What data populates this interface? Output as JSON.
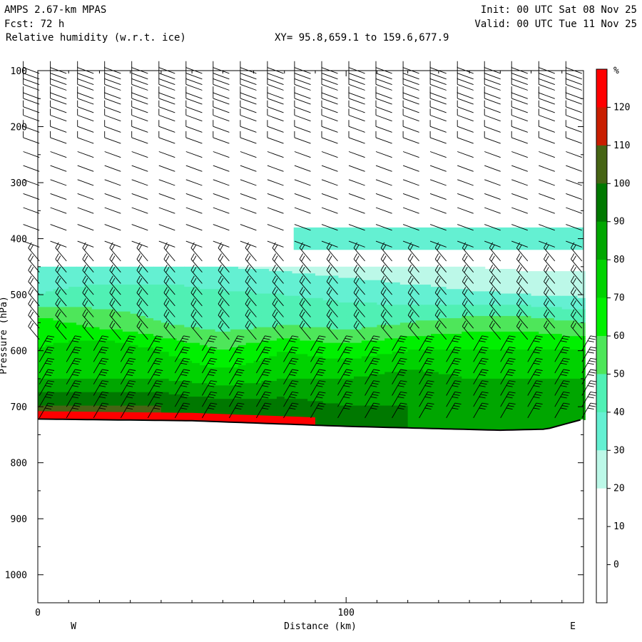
{
  "header": {
    "model": "AMPS 2.67-km MPAS",
    "fcst": "Fcst:   72 h",
    "field": "Relative humidity (w.r.t. ice)",
    "xy": "XY=  95.8,659.1 to 159.6,677.9",
    "init": "Init: 00 UTC Sat 08 Nov 25",
    "valid": "Valid: 00 UTC Tue 11 Nov 25"
  },
  "chart_data": {
    "type": "heatmap",
    "title": "Relative humidity (w.r.t. ice)",
    "xlabel": "Distance (km)",
    "ylabel": "Pressure (hPa)",
    "xlim": [
      0,
      177
    ],
    "ylim": [
      1050,
      100
    ],
    "x_ticks": [
      0,
      100
    ],
    "x_minor_step": 10,
    "y_ticks": [
      100,
      200,
      300,
      400,
      500,
      600,
      700,
      800,
      900,
      1000
    ],
    "side_labels": {
      "left": "W",
      "right": "E"
    },
    "colorbar": {
      "unit": "%",
      "tick_labels": [
        120,
        110,
        100,
        90,
        80,
        70,
        60,
        50,
        40,
        30,
        20,
        10,
        0
      ],
      "bins": [
        {
          "range": [
            120,
            130
          ],
          "color": "#ff0000"
        },
        {
          "range": [
            110,
            120
          ],
          "color": "#c81e00"
        },
        {
          "range": [
            100,
            110
          ],
          "color": "#466414"
        },
        {
          "range": [
            90,
            100
          ],
          "color": "#007800"
        },
        {
          "range": [
            80,
            90
          ],
          "color": "#00a600"
        },
        {
          "range": [
            70,
            80
          ],
          "color": "#00d200"
        },
        {
          "range": [
            60,
            70
          ],
          "color": "#00f000"
        },
        {
          "range": [
            50,
            60
          ],
          "color": "#4ee65a"
        },
        {
          "range": [
            40,
            50
          ],
          "color": "#50f0b4"
        },
        {
          "range": [
            30,
            40
          ],
          "color": "#64f0d2"
        },
        {
          "range": [
            20,
            30
          ],
          "color": "#bcf8e8"
        },
        {
          "range": [
            10,
            20
          ],
          "color": "#ffffff"
        },
        {
          "range": [
            0,
            10
          ],
          "color": "#ffffff"
        },
        {
          "range": [
            -10,
            0
          ],
          "color": "#ffffff"
        }
      ]
    },
    "terrain_surface": {
      "x": [
        0,
        50,
        100,
        150,
        165,
        177
      ],
      "p": [
        722,
        725,
        735,
        742,
        740,
        722
      ]
    },
    "rh_field": {
      "x": [
        0,
        20,
        40,
        60,
        80,
        100,
        120,
        140,
        160,
        177
      ],
      "p": [
        450,
        500,
        550,
        600,
        650,
        700
      ],
      "values": [
        [
          32,
          32,
          32,
          30,
          28,
          25,
          22,
          20,
          18,
          18
        ],
        [
          40,
          45,
          45,
          42,
          40,
          38,
          35,
          32,
          30,
          28
        ],
        [
          65,
          55,
          50,
          45,
          48,
          45,
          50,
          55,
          55,
          50
        ],
        [
          70,
          80,
          70,
          60,
          70,
          65,
          70,
          70,
          70,
          70
        ],
        [
          80,
          80,
          80,
          75,
          80,
          80,
          85,
          80,
          80,
          80
        ],
        [
          100,
          100,
          100,
          95,
          95,
          90,
          90,
          85,
          80,
          80
        ]
      ]
    },
    "rh_band_400": {
      "x": [
        83,
        177
      ],
      "p": [
        380,
        420
      ],
      "value": 30
    },
    "surface_layer_rh": {
      "x": [
        0,
        90
      ],
      "value": 125
    },
    "wind_barbs": {
      "x_spacing_km": 8.8,
      "p_levels": [
        105,
        115,
        125,
        135,
        150,
        160,
        175,
        190,
        210,
        230,
        255,
        280,
        305,
        330,
        355,
        385,
        415,
        440,
        460,
        480,
        500,
        520,
        540,
        560,
        580,
        600,
        620,
        640,
        660,
        680,
        700,
        720
      ],
      "dir_upper_deg": 290,
      "dir_mid_deg": 320,
      "dir_low_deg": 30
    }
  }
}
